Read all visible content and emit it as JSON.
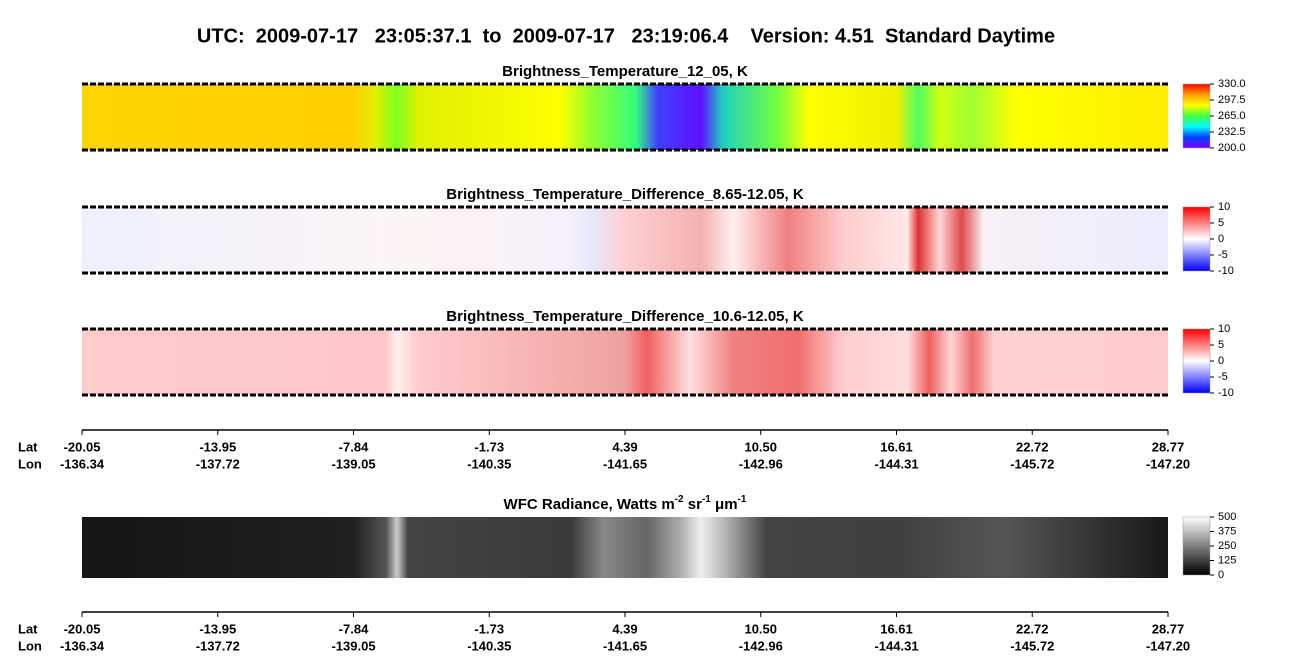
{
  "title": "UTC:  2009-07-17   23:05:37.1  to  2009-07-17   23:19:06.4    Version: 4.51  Standard Daytime",
  "chart_data": [
    {
      "type": "heatmap",
      "title": "Brightness_Temperature_12_05, K",
      "colors": [
        "#8000ff",
        "#0040ff",
        "#00ffff",
        "#40ff40",
        "#ffff00",
        "#ffa000",
        "#ff0000"
      ],
      "clim": [
        200,
        330
      ],
      "cticks": [
        {
          "value": 200,
          "label": "200.0"
        },
        232.5,
        {
          "value": 265,
          "label": "265.0"
        },
        297.5,
        {
          "value": 330,
          "label": "330.0"
        }
      ]
    },
    {
      "type": "heatmap",
      "title": "Brightness_Temperature_Difference_8.65-12.05, K",
      "colors": [
        "#0000ff",
        "#ffffff",
        "#ff0000"
      ],
      "clim": [
        -10,
        10
      ],
      "cticks": [
        -10,
        -5,
        0,
        5,
        10
      ]
    },
    {
      "type": "heatmap",
      "title": "Brightness_Temperature_Difference_10.6-12.05, K",
      "colors": [
        "#0000ff",
        "#ffffff",
        "#ff0000"
      ],
      "clim": [
        -10,
        10
      ],
      "cticks": [
        -10,
        -5,
        0,
        5,
        10
      ],
      "xaxis": {
        "row_names": [
          "Lat",
          "Lon"
        ],
        "lat": [
          -20.05,
          -13.95,
          -7.84,
          -1.73,
          4.39,
          {
            "value": 10.5,
            "label": "10.50"
          },
          16.61,
          22.72,
          28.77
        ],
        "lon": [
          -136.34,
          -137.72,
          -139.05,
          -140.35,
          -141.65,
          -142.96,
          -144.31,
          -145.72,
          {
            "value": -147.2,
            "label": "-147.20"
          }
        ]
      }
    },
    {
      "type": "heatmap",
      "title_parts": [
        "WFC Radiance, Watts m",
        "-2",
        " sr",
        "-1",
        " μm",
        "-1"
      ],
      "colors": [
        "#000000",
        "#ffffff"
      ],
      "clim": [
        0,
        500
      ],
      "cticks": [
        0,
        125,
        250,
        375,
        500
      ],
      "xaxis": {
        "row_names": [
          "Lat",
          "Lon"
        ],
        "lat": [
          -20.05,
          -13.95,
          -7.84,
          -1.73,
          4.39,
          {
            "value": 10.5,
            "label": "10.50"
          },
          16.61,
          22.72,
          28.77
        ],
        "lon": [
          -136.34,
          -137.72,
          -139.05,
          -140.35,
          -141.65,
          -142.96,
          -144.31,
          -145.72,
          {
            "value": -147.2,
            "label": "-147.20"
          }
        ]
      }
    }
  ]
}
